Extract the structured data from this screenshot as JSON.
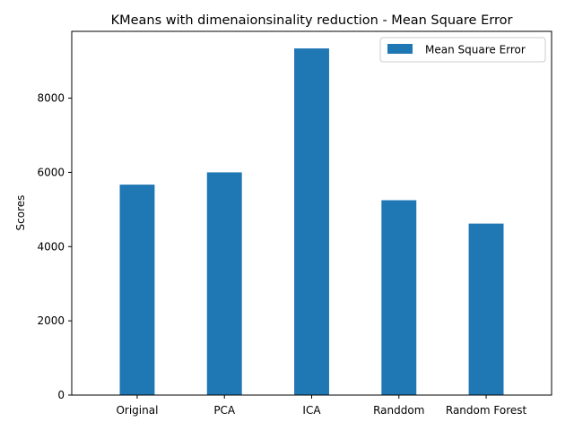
{
  "chart_data": {
    "type": "bar",
    "title": "KMeans with dimenaionsinality reduction - Mean Square Error",
    "xlabel": "",
    "ylabel": "Scores",
    "categories": [
      "Original",
      "PCA",
      "ICA",
      "Randdom",
      "Random Forest"
    ],
    "series": [
      {
        "name": "Mean Square Error",
        "values": [
          5670,
          6000,
          9340,
          5250,
          4620
        ],
        "color": "#1f77b4"
      }
    ],
    "ylim": [
      0,
      9800
    ],
    "yticks": [
      0,
      2000,
      4000,
      6000,
      8000
    ],
    "grid": false,
    "legend_position": "top-right"
  }
}
